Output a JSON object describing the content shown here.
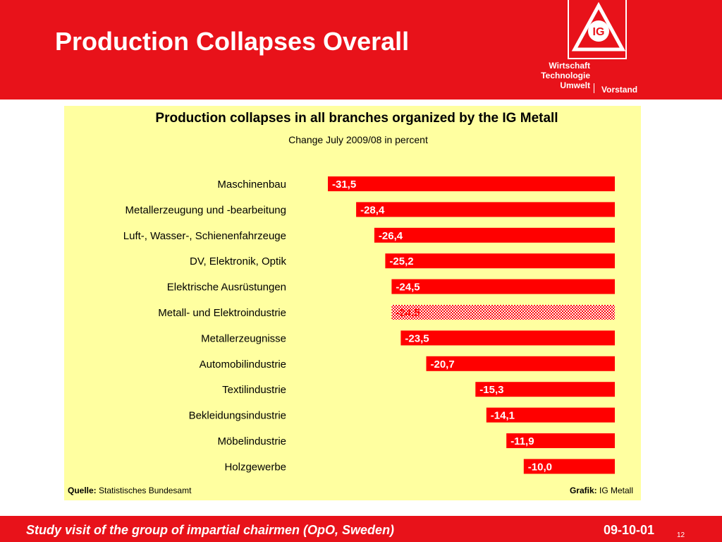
{
  "slide": {
    "title": "Production Collapses Overall"
  },
  "branding": {
    "logo_text": "IG",
    "dept_lines": [
      "Wirtschaft",
      "Technologie",
      "Umwelt"
    ],
    "vorstand": "Vorstand",
    "color_red": "#e8121a",
    "color_panel": "#ffffa0"
  },
  "chart_data": {
    "type": "bar",
    "orientation": "horizontal",
    "title": "Production collapses in all branches organized by the IG Metall",
    "subtitle": "Change July 2009/08 in percent",
    "categories": [
      "Maschinenbau",
      "Metallerzeugung und -bearbeitung",
      "Luft-, Wasser-, Schienenfahrzeuge",
      "DV, Elektronik, Optik",
      "Elektrische Ausrüstungen",
      "Metall- und Elektroindustrie",
      "Metallerzeugnisse",
      "Automobilindustrie",
      "Textilindustrie",
      "Bekleidungsindustrie",
      "Möbelindustrie",
      "Holzgewerbe"
    ],
    "values": [
      -31.5,
      -28.4,
      -26.4,
      -25.2,
      -24.5,
      -24.5,
      -23.5,
      -20.7,
      -15.3,
      -14.1,
      -11.9,
      -10.0
    ],
    "value_labels": [
      "-31,5",
      "-28,4",
      "-26,4",
      "-25,2",
      "-24,5",
      "-24,5",
      "-23,5",
      "-20,7",
      "-15,3",
      "-14,1",
      "-11,9",
      "-10,0"
    ],
    "highlighted": "Metall- und Elektroindustrie",
    "bar_color": "#ff0000",
    "xlim": [
      -31.5,
      0
    ],
    "grid": false,
    "legend": "none",
    "source_label": "Quelle:",
    "source": "Statistisches Bundesamt",
    "credit_label": "Grafik:",
    "credit": "IG Metall"
  },
  "footer": {
    "text": "Study visit of the group of impartial chairmen (OpO, Sweden)",
    "date": "09-10-01",
    "page": "12"
  }
}
